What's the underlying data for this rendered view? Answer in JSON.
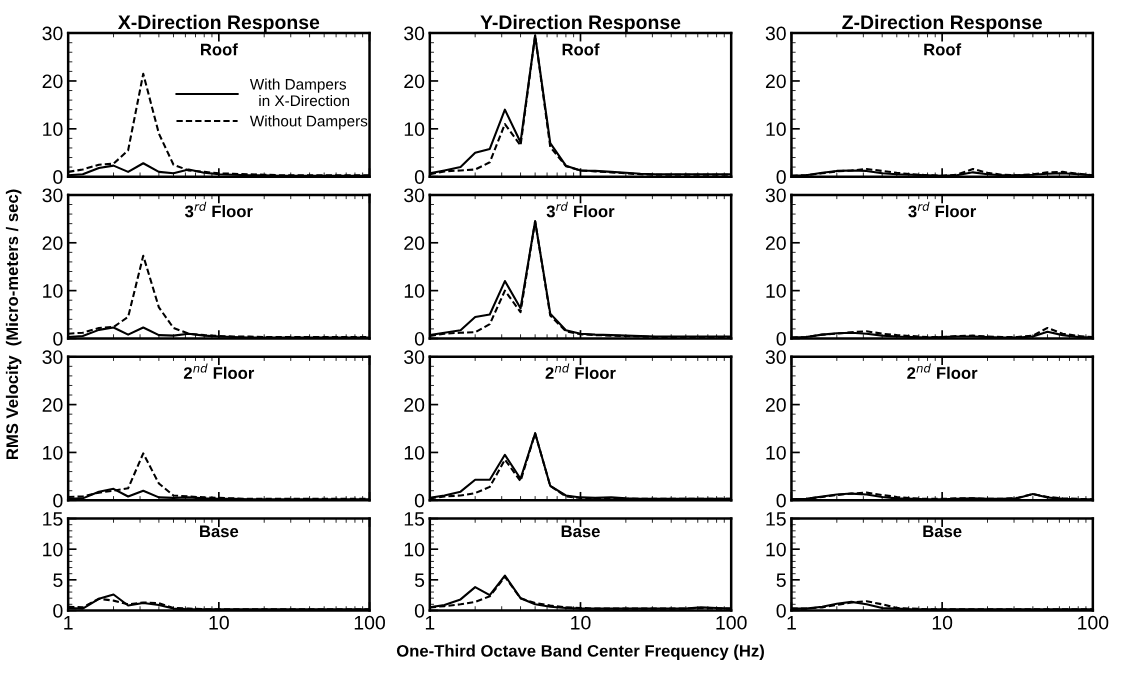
{
  "chart_data": [
    {
      "type": "line",
      "title": "X-Direction Response",
      "ylabel": "RMS Velocity  (Micro-meters / sec)",
      "annotations": [
        "Roof"
      ],
      "log": "x",
      "xlim": [
        1,
        100
      ],
      "xticks": [
        1,
        10,
        100
      ],
      "ylim": [
        0,
        30
      ],
      "yticks": [
        0,
        10,
        20,
        30
      ],
      "tick_labels": "y",
      "legend": "top right",
      "x": [
        1,
        1.25,
        1.6,
        2,
        2.5,
        3.15,
        4,
        5,
        6.3,
        8,
        10,
        12.5,
        16,
        20,
        25,
        31.5,
        40,
        50,
        63,
        80,
        100
      ],
      "series": [
        {
          "name": "With Dampers\n  in X-Direction",
          "color": "#000000",
          "line_style": "solid",
          "values": [
            0.3,
            0.5,
            1.8,
            2.3,
            1,
            2.8,
            1,
            0.7,
            1.5,
            0.8,
            0.5,
            0.4,
            0.3,
            0.3,
            0.2,
            0.2,
            0.2,
            0.2,
            0.2,
            0.2,
            0.2
          ]
        },
        {
          "name": "Without Dampers",
          "color": "#000000",
          "line_style": "dashed",
          "values": [
            1,
            1.5,
            2.5,
            2.7,
            5.5,
            21.5,
            9,
            2.5,
            1.3,
            1,
            0.7,
            0.6,
            0.5,
            0.4,
            0.3,
            0.3,
            0.3,
            0.3,
            0.3,
            0.3,
            0.3
          ]
        }
      ]
    },
    {
      "type": "line",
      "title": "Y-Direction Response",
      "annotations": [
        "Roof"
      ],
      "log": "x",
      "xlim": [
        1,
        100
      ],
      "xticks": [
        1,
        10,
        100
      ],
      "ylim": [
        0,
        30
      ],
      "yticks": [
        0,
        10,
        20,
        30
      ],
      "tick_labels": "y",
      "x": [
        1,
        1.25,
        1.6,
        2,
        2.5,
        3.15,
        4,
        5,
        6.3,
        8,
        10,
        12.5,
        16,
        20,
        25,
        31.5,
        40,
        50,
        63,
        80,
        100
      ],
      "series": [
        {
          "color": "#000000",
          "line_style": "solid",
          "values": [
            0.7,
            1.3,
            2,
            5,
            5.8,
            14,
            7.2,
            29.5,
            7,
            2.3,
            1.3,
            1.2,
            1,
            0.8,
            0.6,
            0.5,
            0.5,
            0.5,
            0.5,
            0.5,
            0.5
          ]
        },
        {
          "color": "#000000",
          "line_style": "dashed",
          "values": [
            0.5,
            1.1,
            1.3,
            1.5,
            3,
            11,
            6.5,
            29.5,
            6.2,
            2.2,
            1.3,
            1.1,
            0.9,
            0.7,
            0.5,
            0.4,
            0.4,
            0.4,
            0.4,
            0.4,
            0.4
          ]
        }
      ]
    },
    {
      "type": "line",
      "title": "Z-Direction Response",
      "annotations": [
        "Roof"
      ],
      "log": "x",
      "xlim": [
        1,
        100
      ],
      "xticks": [
        1,
        10,
        100
      ],
      "ylim": [
        0,
        30
      ],
      "yticks": [
        0,
        10,
        20,
        30
      ],
      "tick_labels": "y",
      "x": [
        1,
        1.25,
        1.6,
        2,
        2.5,
        3.15,
        4,
        5,
        6.3,
        8,
        10,
        12.5,
        16,
        20,
        25,
        31.5,
        40,
        50,
        63,
        80,
        100
      ],
      "series": [
        {
          "color": "#000000",
          "line_style": "solid",
          "values": [
            0.2,
            0.3,
            0.8,
            1.2,
            1.3,
            1.2,
            0.7,
            0.5,
            0.4,
            0.3,
            0.2,
            0.3,
            0.9,
            0.5,
            0.3,
            0.3,
            0.4,
            0.6,
            0.7,
            0.5,
            0.3
          ]
        },
        {
          "color": "#000000",
          "line_style": "dashed",
          "values": [
            0.2,
            0.3,
            0.7,
            1.1,
            1.3,
            1.6,
            1.2,
            0.8,
            0.5,
            0.3,
            0.2,
            0.4,
            1.6,
            0.8,
            0.4,
            0.3,
            0.5,
            0.9,
            1,
            0.6,
            0.3
          ]
        }
      ]
    },
    {
      "type": "line",
      "annotations": [
        "3$^{rd}$ Floor"
      ],
      "log": "x",
      "xlim": [
        1,
        100
      ],
      "xticks": [
        1,
        10,
        100
      ],
      "ylim": [
        0,
        30
      ],
      "yticks": [
        0,
        10,
        20,
        30
      ],
      "tick_labels": "y",
      "x": [
        1,
        1.25,
        1.6,
        2,
        2.5,
        3.15,
        4,
        5,
        6.3,
        8,
        10,
        12.5,
        16,
        20,
        25,
        31.5,
        40,
        50,
        63,
        80,
        100
      ],
      "series": [
        {
          "color": "#000000",
          "line_style": "solid",
          "values": [
            0.3,
            0.5,
            1.8,
            2.3,
            0.8,
            2.3,
            0.7,
            0.6,
            1,
            0.6,
            0.4,
            0.3,
            0.2,
            0.2,
            0.2,
            0.2,
            0.2,
            0.2,
            0.2,
            0.2,
            0.2
          ]
        },
        {
          "color": "#000000",
          "line_style": "dashed",
          "values": [
            1,
            1.2,
            2.2,
            2.4,
            4.5,
            17.3,
            6.5,
            2.2,
            1,
            0.7,
            0.5,
            0.4,
            0.4,
            0.3,
            0.3,
            0.3,
            0.3,
            0.3,
            0.3,
            0.3,
            0.3
          ]
        }
      ]
    },
    {
      "type": "line",
      "annotations": [
        "3$^{rd}$ Floor"
      ],
      "log": "x",
      "xlim": [
        1,
        100
      ],
      "xticks": [
        1,
        10,
        100
      ],
      "ylim": [
        0,
        30
      ],
      "yticks": [
        0,
        10,
        20,
        30
      ],
      "tick_labels": "y",
      "x": [
        1,
        1.25,
        1.6,
        2,
        2.5,
        3.15,
        4,
        5,
        6.3,
        8,
        10,
        12.5,
        16,
        20,
        25,
        31.5,
        40,
        50,
        63,
        80,
        100
      ],
      "series": [
        {
          "color": "#000000",
          "line_style": "solid",
          "values": [
            0.7,
            1.2,
            1.7,
            4.5,
            5,
            12,
            6.3,
            24.5,
            5.2,
            1.7,
            1,
            0.8,
            0.7,
            0.6,
            0.5,
            0.4,
            0.4,
            0.4,
            0.4,
            0.4,
            0.4
          ]
        },
        {
          "color": "#000000",
          "line_style": "dashed",
          "values": [
            0.5,
            1,
            1.2,
            1.3,
            3,
            10,
            5.5,
            24.5,
            4.8,
            1.5,
            0.9,
            0.7,
            0.6,
            0.5,
            0.4,
            0.3,
            0.3,
            0.3,
            0.3,
            0.3,
            0.3
          ]
        }
      ]
    },
    {
      "type": "line",
      "annotations": [
        "3$^{rd}$ Floor"
      ],
      "log": "x",
      "xlim": [
        1,
        100
      ],
      "xticks": [
        1,
        10,
        100
      ],
      "ylim": [
        0,
        30
      ],
      "yticks": [
        0,
        10,
        20,
        30
      ],
      "tick_labels": "y",
      "x": [
        1,
        1.25,
        1.6,
        2,
        2.5,
        3.15,
        4,
        5,
        6.3,
        8,
        10,
        12.5,
        16,
        20,
        25,
        31.5,
        40,
        50,
        63,
        80,
        100
      ],
      "series": [
        {
          "color": "#000000",
          "line_style": "solid",
          "values": [
            0.2,
            0.3,
            0.8,
            1.1,
            1.2,
            1,
            0.6,
            0.4,
            0.3,
            0.2,
            0.3,
            0.4,
            0.4,
            0.3,
            0.2,
            0.2,
            0.4,
            1.4,
            0.7,
            0.3,
            0.2
          ]
        },
        {
          "color": "#000000",
          "line_style": "dashed",
          "values": [
            0.2,
            0.3,
            0.8,
            1,
            1.3,
            1.5,
            1,
            0.7,
            0.5,
            0.3,
            0.3,
            0.5,
            0.6,
            0.4,
            0.3,
            0.3,
            0.6,
            2.2,
            1,
            0.5,
            0.3
          ]
        }
      ]
    },
    {
      "type": "line",
      "annotations": [
        "2$^{nd}$ Floor"
      ],
      "log": "x",
      "xlim": [
        1,
        100
      ],
      "xticks": [
        1,
        10,
        100
      ],
      "ylim": [
        0,
        30
      ],
      "yticks": [
        0,
        10,
        20,
        30
      ],
      "tick_labels": "y",
      "x": [
        1,
        1.25,
        1.6,
        2,
        2.5,
        3.15,
        4,
        5,
        6.3,
        8,
        10,
        12.5,
        16,
        20,
        25,
        31.5,
        40,
        50,
        63,
        80,
        100
      ],
      "series": [
        {
          "color": "#000000",
          "line_style": "solid",
          "values": [
            0.3,
            0.4,
            1.8,
            2.4,
            0.8,
            2,
            0.6,
            0.5,
            0.6,
            0.4,
            0.3,
            0.3,
            0.2,
            0.2,
            0.2,
            0.2,
            0.2,
            0.2,
            0.2,
            0.2,
            0.2
          ]
        },
        {
          "color": "#000000",
          "line_style": "dashed",
          "values": [
            0.7,
            0.8,
            1.6,
            2,
            2.5,
            9.8,
            3.5,
            1,
            0.8,
            0.6,
            0.5,
            0.4,
            0.3,
            0.3,
            0.3,
            0.3,
            0.3,
            0.3,
            0.3,
            0.3,
            0.3
          ]
        }
      ]
    },
    {
      "type": "line",
      "annotations": [
        "2$^{nd}$ Floor"
      ],
      "log": "x",
      "xlim": [
        1,
        100
      ],
      "xticks": [
        1,
        10,
        100
      ],
      "ylim": [
        0,
        30
      ],
      "yticks": [
        0,
        10,
        20,
        30
      ],
      "tick_labels": "y",
      "x": [
        1,
        1.25,
        1.6,
        2,
        2.5,
        3.15,
        4,
        5,
        6.3,
        8,
        10,
        12.5,
        16,
        20,
        25,
        31.5,
        40,
        50,
        63,
        80,
        100
      ],
      "series": [
        {
          "color": "#000000",
          "line_style": "solid",
          "values": [
            0.5,
            1,
            1.8,
            4.3,
            4.3,
            9.5,
            4.5,
            14,
            3,
            1,
            0.6,
            0.5,
            0.6,
            0.4,
            0.3,
            0.3,
            0.3,
            0.3,
            0.3,
            0.3,
            0.3
          ]
        },
        {
          "color": "#000000",
          "line_style": "dashed",
          "values": [
            0.4,
            0.8,
            1,
            1.5,
            2.8,
            8.5,
            4,
            14,
            3,
            0.8,
            0.5,
            0.4,
            0.4,
            0.3,
            0.3,
            0.3,
            0.3,
            0.3,
            0.3,
            0.3,
            0.3
          ]
        }
      ]
    },
    {
      "type": "line",
      "annotations": [
        "2$^{nd}$ Floor"
      ],
      "log": "x",
      "xlim": [
        1,
        100
      ],
      "xticks": [
        1,
        10,
        100
      ],
      "ylim": [
        0,
        30
      ],
      "yticks": [
        0,
        10,
        20,
        30
      ],
      "tick_labels": "y",
      "x": [
        1,
        1.25,
        1.6,
        2,
        2.5,
        3.15,
        4,
        5,
        6.3,
        8,
        10,
        12.5,
        16,
        20,
        25,
        31.5,
        40,
        50,
        63,
        80,
        100
      ],
      "series": [
        {
          "color": "#000000",
          "line_style": "solid",
          "values": [
            0.2,
            0.3,
            0.8,
            1.2,
            1.4,
            1.2,
            0.7,
            0.4,
            0.3,
            0.2,
            0.2,
            0.3,
            0.4,
            0.3,
            0.3,
            0.4,
            1.3,
            0.6,
            0.3,
            0.2,
            0.2
          ]
        },
        {
          "color": "#000000",
          "line_style": "dashed",
          "values": [
            0.2,
            0.3,
            0.7,
            1.1,
            1.4,
            1.6,
            1.1,
            0.7,
            0.4,
            0.3,
            0.3,
            0.4,
            0.4,
            0.3,
            0.3,
            0.5,
            1.3,
            0.7,
            0.4,
            0.3,
            0.2
          ]
        }
      ]
    },
    {
      "type": "line",
      "annotations": [
        "Base"
      ],
      "log": "x",
      "xlim": [
        1,
        100
      ],
      "xticks": [
        1,
        10,
        100
      ],
      "ylim": [
        0,
        15
      ],
      "yticks": [
        0,
        5,
        10,
        15
      ],
      "x": [
        1,
        1.25,
        1.6,
        2,
        2.5,
        3.15,
        4,
        5,
        6.3,
        8,
        10,
        12.5,
        16,
        20,
        25,
        31.5,
        40,
        50,
        63,
        80,
        100
      ],
      "series": [
        {
          "color": "#000000",
          "line_style": "solid",
          "values": [
            0.4,
            0.3,
            1.9,
            2.6,
            0.8,
            1.2,
            0.9,
            0.3,
            0.2,
            0.2,
            0.2,
            0.2,
            0.2,
            0.2,
            0.2,
            0.2,
            0.2,
            0.2,
            0.2,
            0.2,
            0.2
          ]
        },
        {
          "color": "#000000",
          "line_style": "dashed",
          "values": [
            0.6,
            0.5,
            1.9,
            1.6,
            1,
            1.3,
            1.2,
            0.4,
            0.3,
            0.2,
            0.2,
            0.2,
            0.2,
            0.2,
            0.2,
            0.2,
            0.2,
            0.2,
            0.2,
            0.2,
            0.2
          ]
        }
      ]
    },
    {
      "type": "line",
      "xlabel": "One-Third Octave Band Center Frequency (Hz)",
      "annotations": [
        "Base"
      ],
      "log": "x",
      "xlim": [
        1,
        100
      ],
      "xticks": [
        1,
        10,
        100
      ],
      "ylim": [
        0,
        15
      ],
      "yticks": [
        0,
        5,
        10,
        15
      ],
      "x": [
        1,
        1.25,
        1.6,
        2,
        2.5,
        3.15,
        4,
        5,
        6.3,
        8,
        10,
        12.5,
        16,
        20,
        25,
        31.5,
        40,
        50,
        63,
        80,
        100
      ],
      "series": [
        {
          "color": "#000000",
          "line_style": "solid",
          "values": [
            0.5,
            0.9,
            1.8,
            3.8,
            2.5,
            5.7,
            2,
            1,
            0.6,
            0.4,
            0.3,
            0.3,
            0.3,
            0.3,
            0.3,
            0.3,
            0.3,
            0.3,
            0.5,
            0.4,
            0.3
          ]
        },
        {
          "color": "#000000",
          "line_style": "dashed",
          "values": [
            0.5,
            0.7,
            1,
            1.4,
            2.3,
            5.5,
            2,
            1.2,
            0.8,
            0.5,
            0.4,
            0.3,
            0.3,
            0.3,
            0.3,
            0.3,
            0.3,
            0.3,
            0.4,
            0.3,
            0.3
          ]
        }
      ]
    },
    {
      "type": "line",
      "annotations": [
        "Base"
      ],
      "log": "x",
      "xlim": [
        1,
        100
      ],
      "xticks": [
        1,
        10,
        100
      ],
      "ylim": [
        0,
        15
      ],
      "yticks": [
        0,
        5,
        10,
        15
      ],
      "x": [
        1,
        1.25,
        1.6,
        2,
        2.5,
        3.15,
        4,
        5,
        6.3,
        8,
        10,
        12.5,
        16,
        20,
        25,
        31.5,
        40,
        50,
        63,
        80,
        100
      ],
      "series": [
        {
          "color": "#000000",
          "line_style": "solid",
          "values": [
            0.3,
            0.3,
            0.6,
            1.1,
            1.4,
            1,
            0.4,
            0.3,
            0.2,
            0.2,
            0.2,
            0.2,
            0.2,
            0.2,
            0.2,
            0.2,
            0.2,
            0.2,
            0.2,
            0.2,
            0.2
          ]
        },
        {
          "color": "#000000",
          "line_style": "dashed",
          "values": [
            0.3,
            0.3,
            0.5,
            0.9,
            1.3,
            1.5,
            1,
            0.4,
            0.3,
            0.2,
            0.2,
            0.2,
            0.2,
            0.2,
            0.2,
            0.2,
            0.2,
            0.2,
            0.2,
            0.2,
            0.2
          ]
        }
      ]
    }
  ]
}
